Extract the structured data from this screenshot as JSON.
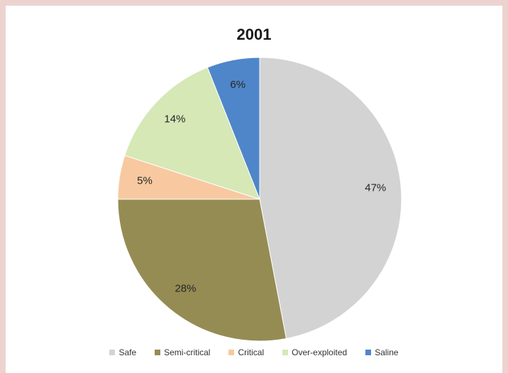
{
  "chart_data": {
    "type": "pie",
    "title": "2001",
    "categories": [
      "Safe",
      "Semi-critical",
      "Critical",
      "Over-exploited",
      "Saline"
    ],
    "values": [
      47,
      28,
      5,
      14,
      6
    ],
    "labels": [
      "47%",
      "28%",
      "5%",
      "14%",
      "6%"
    ],
    "colors": [
      "#d3d3d3",
      "#958c54",
      "#f8c9a0",
      "#d5e8b6",
      "#4f86c9"
    ],
    "legend_position": "bottom",
    "start_angle": "12 o'clock",
    "direction": "clockwise"
  }
}
